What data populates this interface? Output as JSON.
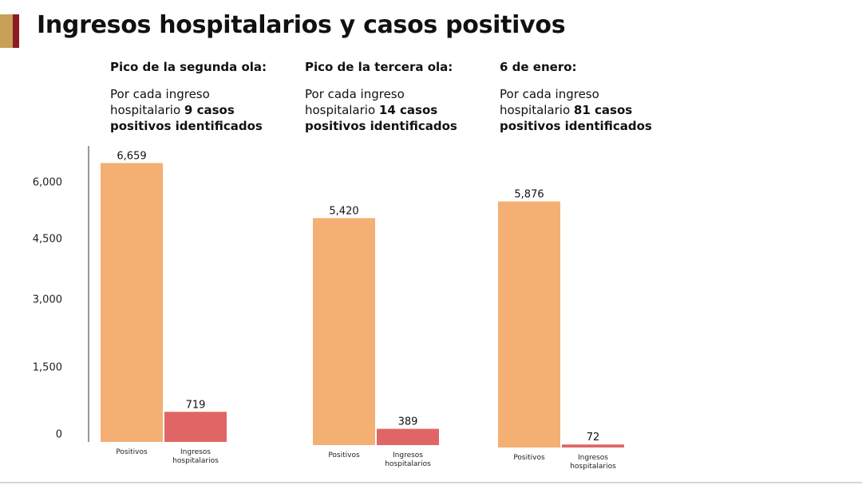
{
  "header": {
    "title": "Ingresos hospitalarios y casos positivos"
  },
  "panels": [
    {
      "heading": "Pico de la segunda ola:",
      "text_line1": "Por cada ingreso",
      "text_line2_plain": "hospitalario ",
      "text_line2_bold": "9 casos",
      "text_line3_bold": "positivos identificados"
    },
    {
      "heading": "Pico de la tercera ola:",
      "text_line1": "Por cada ingreso",
      "text_line2_plain": "hospitalario ",
      "text_line2_bold": "14 casos",
      "text_line3_bold": "positivos identificados"
    },
    {
      "heading": "6 de enero:",
      "text_line1": "Por cada ingreso",
      "text_line2_plain": "hospitalario ",
      "text_line2_bold": "81 casos",
      "text_line3_bold": "positivos identificados"
    }
  ],
  "chart_data": {
    "type": "bar",
    "title": "Ingresos hospitalarios y casos positivos",
    "categories": [
      "Positivos",
      "Ingresos hospitalarios"
    ],
    "category_lines": [
      [
        "Positivos"
      ],
      [
        "Ingresos",
        "hospitalarios"
      ]
    ],
    "y_ticks": [
      0,
      1500,
      3000,
      4500,
      6000
    ],
    "y_tick_labels": [
      "0",
      "1,500",
      "3,000",
      "4,500",
      "6,000"
    ],
    "ylim": [
      0,
      7000
    ],
    "grid": false,
    "legend": "none",
    "colors": {
      "positivos": "#f3b072",
      "ingresos": "#e06666"
    },
    "groups": [
      {
        "label": "Pico de la segunda ola:",
        "values": [
          6659,
          719
        ],
        "value_labels": [
          "6,659",
          "719"
        ]
      },
      {
        "label": "Pico de la tercera ola:",
        "values": [
          5420,
          389
        ],
        "value_labels": [
          "5,420",
          "389"
        ]
      },
      {
        "label": "6 de enero:",
        "values": [
          5876,
          72
        ],
        "value_labels": [
          "5,876",
          "72"
        ]
      }
    ]
  }
}
